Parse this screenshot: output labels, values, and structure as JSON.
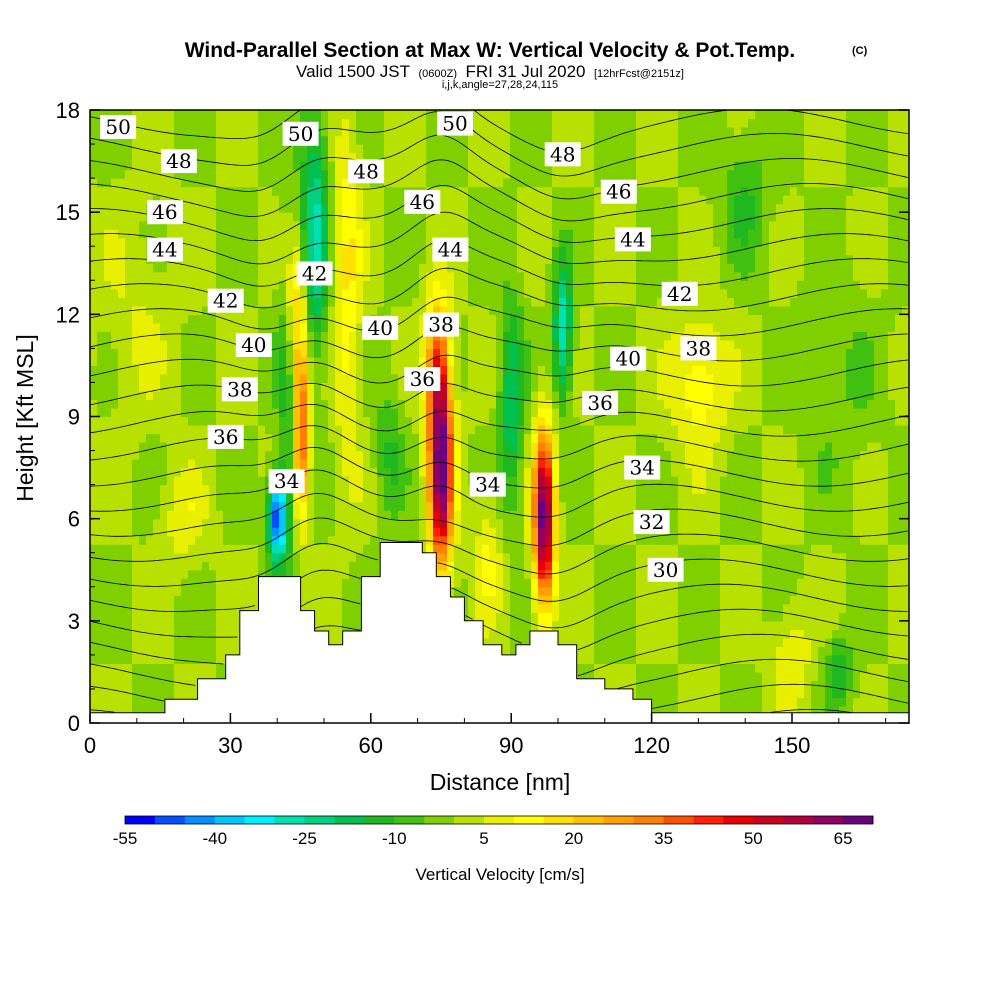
{
  "chart_data": {
    "type": "heatmap",
    "title": "Wind-Parallel Section at Max W: Vertical Velocity & Pot.Temp.",
    "title_mark": "(C)",
    "subtitle_valid": "Valid 1500 JST",
    "subtitle_utc": "(0600Z)",
    "subtitle_date": "FRI 31 Jul 2020",
    "subtitle_fcst": "[12hrFcst@2151z]",
    "subtitle_indices": "i,j,k,angle=27,28,24,115",
    "xlabel": "Distance [nm]",
    "ylabel": "Height [Kft MSL]",
    "xlim": [
      0,
      175
    ],
    "ylim": [
      0,
      18
    ],
    "x_ticks": [
      "0",
      "30",
      "60",
      "90",
      "120",
      "150"
    ],
    "x_tick_values": [
      0,
      30,
      60,
      90,
      120,
      150
    ],
    "y_ticks": [
      "0",
      "3",
      "6",
      "9",
      "12",
      "15",
      "18"
    ],
    "y_tick_values": [
      0,
      3,
      6,
      9,
      12,
      15,
      18
    ],
    "colorbar": {
      "title": "Vertical Velocity [cm/s]",
      "labels": [
        "-55",
        "-40",
        "-25",
        "-10",
        "5",
        "20",
        "35",
        "50",
        "65"
      ],
      "label_values": [
        -55,
        -40,
        -25,
        -10,
        5,
        20,
        35,
        50,
        65
      ],
      "min": -55,
      "max": 70,
      "step": 5,
      "colors": [
        "#0000ff",
        "#0050ff",
        "#0090ff",
        "#00c8ff",
        "#00f0ff",
        "#00e0b0",
        "#00d080",
        "#00c050",
        "#20b820",
        "#40c010",
        "#80d000",
        "#b8e000",
        "#e8f000",
        "#ffff00",
        "#ffe000",
        "#ffc000",
        "#ffa000",
        "#ff8000",
        "#ff5000",
        "#ff2000",
        "#e80000",
        "#c80020",
        "#b00040",
        "#900060",
        "#6a0080"
      ]
    },
    "background_velocity": 0,
    "velocity_features": [
      {
        "x": 40,
        "y": 6.0,
        "w": -50,
        "sx": 2.0,
        "sy": 1.2
      },
      {
        "x": 43,
        "y": 10.0,
        "w": -20,
        "sx": 2.5,
        "sy": 4.5
      },
      {
        "x": 48,
        "y": 14.5,
        "w": -25,
        "sx": 3.0,
        "sy": 4.0
      },
      {
        "x": 45,
        "y": 8.5,
        "w": 45,
        "sx": 1.8,
        "sy": 2.5
      },
      {
        "x": 44,
        "y": 12.0,
        "w": 30,
        "sx": 2.2,
        "sy": 2.5
      },
      {
        "x": 75,
        "y": 7.5,
        "w": 68,
        "sx": 2.5,
        "sy": 3.0
      },
      {
        "x": 74,
        "y": 10.5,
        "w": 30,
        "sx": 2.5,
        "sy": 2.0
      },
      {
        "x": 97,
        "y": 6.0,
        "w": 68,
        "sx": 2.2,
        "sy": 2.5
      },
      {
        "x": 90,
        "y": 9.5,
        "w": -20,
        "sx": 2.5,
        "sy": 3.0
      },
      {
        "x": 101,
        "y": 11.5,
        "w": -30,
        "sx": 2.0,
        "sy": 2.0
      },
      {
        "x": 130,
        "y": 10.0,
        "w": 15,
        "sx": 6.0,
        "sy": 2.0
      },
      {
        "x": 20,
        "y": 6.0,
        "w": 8,
        "sx": 5.0,
        "sy": 1.5
      },
      {
        "x": 55,
        "y": 13.0,
        "w": 15,
        "sx": 3.0,
        "sy": 5.0
      },
      {
        "x": 64,
        "y": 8.0,
        "w": -10,
        "sx": 3.0,
        "sy": 2.0
      },
      {
        "x": 85,
        "y": 5.0,
        "w": 10,
        "sx": 3.0,
        "sy": 2.0
      },
      {
        "x": 140,
        "y": 15.5,
        "w": -10,
        "sx": 5.0,
        "sy": 2.0
      },
      {
        "x": 160,
        "y": 1.5,
        "w": -15,
        "sx": 3.0,
        "sy": 1.0
      },
      {
        "x": 150,
        "y": 2.0,
        "w": 10,
        "sx": 4.0,
        "sy": 1.5
      },
      {
        "x": 10,
        "y": 12.0,
        "w": 5,
        "sx": 8.0,
        "sy": 3.0
      },
      {
        "x": 160,
        "y": 10.0,
        "w": -5,
        "sx": 8.0,
        "sy": 3.0
      }
    ],
    "terrain_profile": [
      [
        0,
        0.3
      ],
      [
        16,
        0.3
      ],
      [
        16,
        0.7
      ],
      [
        23,
        0.7
      ],
      [
        23,
        1.3
      ],
      [
        29,
        1.3
      ],
      [
        29,
        2.0
      ],
      [
        32,
        2.0
      ],
      [
        32,
        3.3
      ],
      [
        36,
        3.3
      ],
      [
        36,
        4.3
      ],
      [
        45,
        4.3
      ],
      [
        45,
        3.3
      ],
      [
        48,
        3.3
      ],
      [
        48,
        2.7
      ],
      [
        51,
        2.7
      ],
      [
        51,
        2.3
      ],
      [
        54,
        2.3
      ],
      [
        54,
        2.7
      ],
      [
        58,
        2.7
      ],
      [
        58,
        4.3
      ],
      [
        62,
        4.3
      ],
      [
        62,
        5.3
      ],
      [
        71,
        5.3
      ],
      [
        71,
        5.0
      ],
      [
        74,
        5.0
      ],
      [
        74,
        4.3
      ],
      [
        77,
        4.3
      ],
      [
        77,
        3.7
      ],
      [
        80,
        3.7
      ],
      [
        80,
        3.0
      ],
      [
        84,
        3.0
      ],
      [
        84,
        2.3
      ],
      [
        88,
        2.3
      ],
      [
        88,
        2.0
      ],
      [
        91,
        2.0
      ],
      [
        91,
        2.3
      ],
      [
        94,
        2.3
      ],
      [
        94,
        2.7
      ],
      [
        100,
        2.7
      ],
      [
        100,
        2.3
      ],
      [
        104,
        2.3
      ],
      [
        104,
        1.3
      ],
      [
        110,
        1.3
      ],
      [
        110,
        1.0
      ],
      [
        116,
        1.0
      ],
      [
        116,
        0.7
      ],
      [
        120,
        0.7
      ],
      [
        120,
        0.3
      ],
      [
        175,
        0.3
      ]
    ],
    "theta_levels": [
      26,
      27,
      28,
      29,
      30,
      31,
      32,
      33,
      34,
      35,
      36,
      37,
      38,
      39,
      40,
      41,
      42,
      43,
      44,
      45,
      46,
      47,
      48,
      49,
      50,
      51
    ],
    "contour_labels": [
      {
        "text": "50",
        "x": 6,
        "y": 17.5
      },
      {
        "text": "48",
        "x": 19,
        "y": 16.5
      },
      {
        "text": "46",
        "x": 16,
        "y": 15.0
      },
      {
        "text": "44",
        "x": 16,
        "y": 13.9
      },
      {
        "text": "42",
        "x": 29,
        "y": 12.4
      },
      {
        "text": "40",
        "x": 35,
        "y": 11.1
      },
      {
        "text": "38",
        "x": 32,
        "y": 9.8
      },
      {
        "text": "36",
        "x": 29,
        "y": 8.4
      },
      {
        "text": "34",
        "x": 42,
        "y": 7.1
      },
      {
        "text": "42",
        "x": 48,
        "y": 13.2
      },
      {
        "text": "50",
        "x": 45,
        "y": 17.3
      },
      {
        "text": "48",
        "x": 59,
        "y": 16.2
      },
      {
        "text": "46",
        "x": 71,
        "y": 15.3
      },
      {
        "text": "40",
        "x": 62,
        "y": 11.6
      },
      {
        "text": "38",
        "x": 75,
        "y": 11.7
      },
      {
        "text": "36",
        "x": 71,
        "y": 10.1
      },
      {
        "text": "44",
        "x": 77,
        "y": 13.9
      },
      {
        "text": "50",
        "x": 78,
        "y": 17.6
      },
      {
        "text": "34",
        "x": 85,
        "y": 7.0
      },
      {
        "text": "48",
        "x": 101,
        "y": 16.7
      },
      {
        "text": "46",
        "x": 113,
        "y": 15.6
      },
      {
        "text": "44",
        "x": 116,
        "y": 14.2
      },
      {
        "text": "42",
        "x": 126,
        "y": 12.6
      },
      {
        "text": "40",
        "x": 115,
        "y": 10.7
      },
      {
        "text": "38",
        "x": 130,
        "y": 11.0
      },
      {
        "text": "36",
        "x": 109,
        "y": 9.4
      },
      {
        "text": "34",
        "x": 118,
        "y": 7.5
      },
      {
        "text": "32",
        "x": 120,
        "y": 5.9
      },
      {
        "text": "30",
        "x": 123,
        "y": 4.5
      }
    ]
  }
}
